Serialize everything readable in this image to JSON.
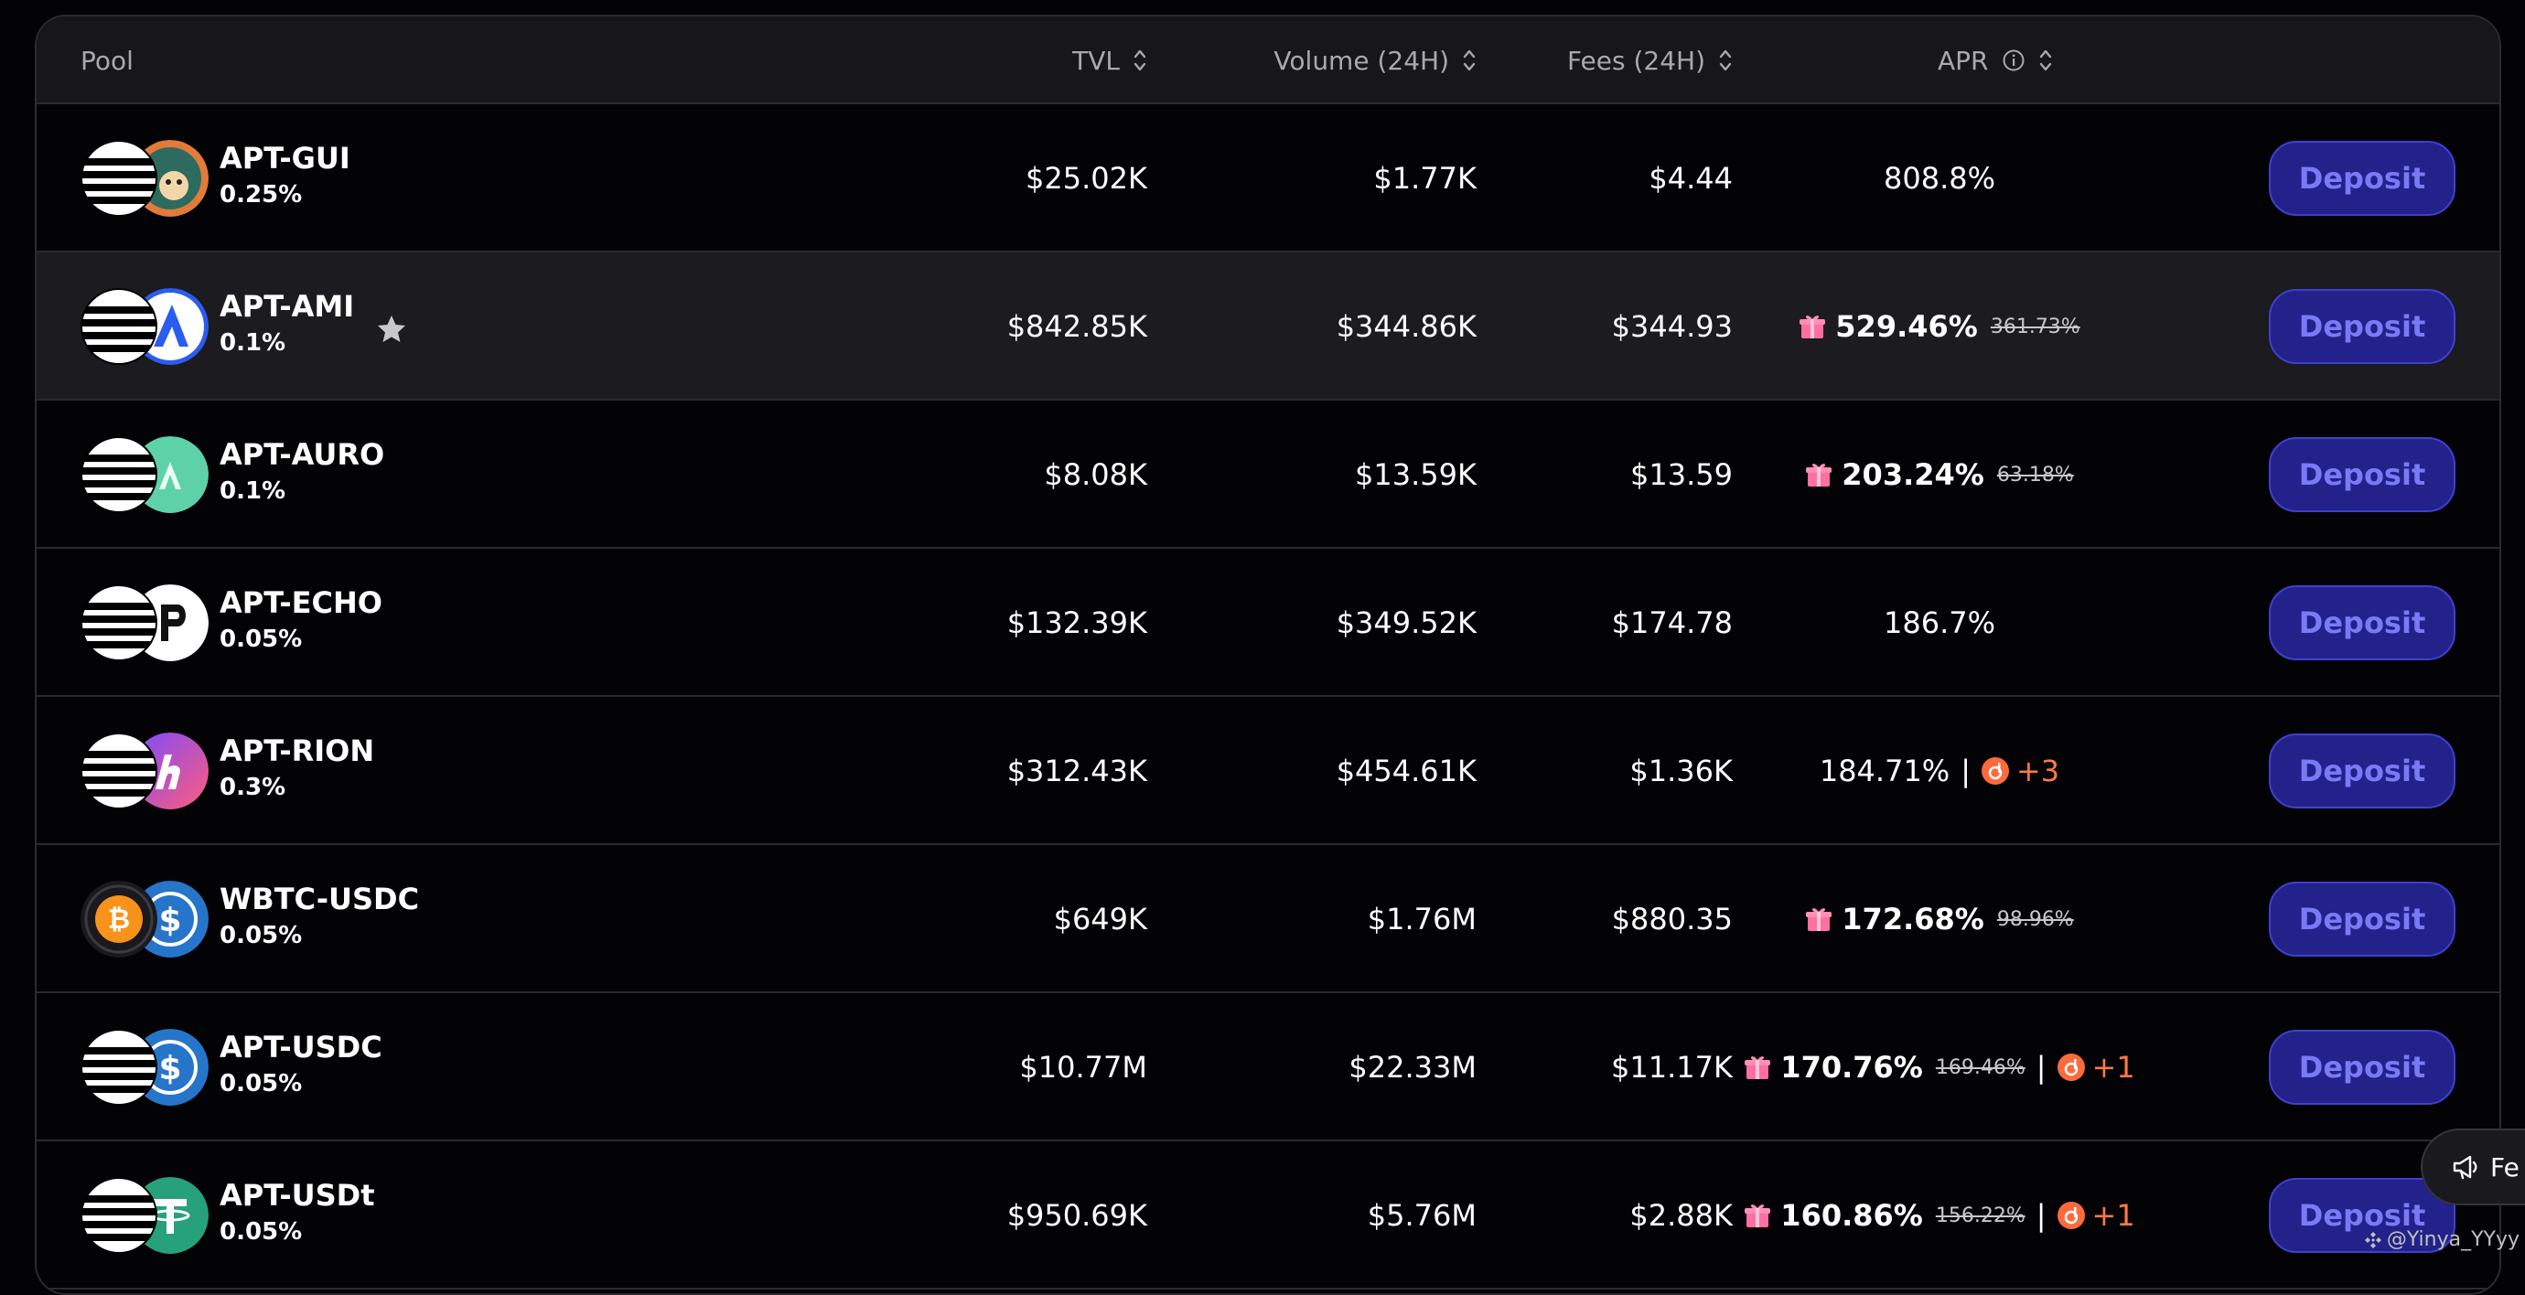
{
  "header": {
    "pool": "Pool",
    "tvl": "TVL",
    "volume": "Volume (24H)",
    "fees": "Fees (24H)",
    "apr": "APR"
  },
  "deposit_label": "Deposit",
  "rows": [
    {
      "name": "APT-GUI",
      "fee": "0.25%",
      "tvl": "$25.02K",
      "volume": "$1.77K",
      "fees": "$4.44",
      "apr": "808.8%"
    },
    {
      "name": "APT-AMI",
      "fee": "0.1%",
      "tvl": "$842.85K",
      "volume": "$344.86K",
      "fees": "$344.93",
      "apr": "529.46%",
      "apr_old": "361.73%"
    },
    {
      "name": "APT-AURO",
      "fee": "0.1%",
      "tvl": "$8.08K",
      "volume": "$13.59K",
      "fees": "$13.59",
      "apr": "203.24%",
      "apr_old": "63.18%"
    },
    {
      "name": "APT-ECHO",
      "fee": "0.05%",
      "tvl": "$132.39K",
      "volume": "$349.52K",
      "fees": "$174.78",
      "apr": "186.7%"
    },
    {
      "name": "APT-RION",
      "fee": "0.3%",
      "tvl": "$312.43K",
      "volume": "$454.61K",
      "fees": "$1.36K",
      "apr": "184.71%",
      "apr_extra": "+3"
    },
    {
      "name": "WBTC-USDC",
      "fee": "0.05%",
      "tvl": "$649K",
      "volume": "$1.76M",
      "fees": "$880.35",
      "apr": "172.68%",
      "apr_old": "98.96%"
    },
    {
      "name": "APT-USDC",
      "fee": "0.05%",
      "tvl": "$10.77M",
      "volume": "$22.33M",
      "fees": "$11.17K",
      "apr": "170.76%",
      "apr_old": "169.46%",
      "apr_extra": "+1"
    },
    {
      "name": "APT-USDt",
      "fee": "0.05%",
      "tvl": "$950.69K",
      "volume": "$5.76M",
      "fees": "$2.88K",
      "apr": "160.86%",
      "apr_old": "156.22%",
      "apr_extra": "+1"
    }
  ],
  "feedback_label": "Fe",
  "watermark": "@Yinya_YYyy",
  "colors": {
    "background": "#030306",
    "header_bg": "#17171b",
    "highlight_row": "#1b1b20",
    "deposit_bg": "#22228a",
    "deposit_text": "#7a7af7",
    "reward_extra": "#ff7a45",
    "gift": "#ff6fa0"
  },
  "icons": {
    "sort": "sort-arrows-icon",
    "info": "info-icon",
    "star": "star-icon",
    "gift": "gift-icon",
    "reward": "reward-token-icon",
    "feedback": "megaphone-icon"
  }
}
